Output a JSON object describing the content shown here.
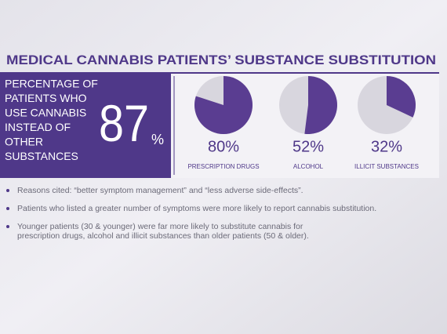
{
  "title": "MEDICAL CANNABIS PATIENTS’ SUBSTANCE SUBSTITUTION",
  "highlight": {
    "lines": [
      "PERCENTAGE OF",
      "PATIENTS WHO",
      "USE CANNABIS",
      "INSTEAD OF",
      "OTHER",
      "SUBSTANCES"
    ],
    "value": "87",
    "unit": "%"
  },
  "chart_data": [
    {
      "type": "pie",
      "categories": [
        "PRESCRIPTION DRUGS"
      ],
      "values": [
        80
      ],
      "value_labels": [
        "80%"
      ],
      "color": "#5a3d91",
      "rest_color": "#d8d6de"
    },
    {
      "type": "pie",
      "categories": [
        "ALCOHOL"
      ],
      "values": [
        52
      ],
      "value_labels": [
        "52%"
      ],
      "color": "#5a3d91",
      "rest_color": "#d8d6de"
    },
    {
      "type": "pie",
      "categories": [
        "ILLICIT SUBSTANCES"
      ],
      "values": [
        32
      ],
      "value_labels": [
        "32%"
      ],
      "color": "#5a3d91",
      "rest_color": "#d8d6de"
    }
  ],
  "bullets": [
    {
      "lines": [
        "Reasons cited: “better symptom management” and “less adverse side-effects”."
      ]
    },
    {
      "lines": [
        "Patients who listed a greater number of symptoms were more likely to report cannabis substitution."
      ]
    },
    {
      "lines": [
        "Younger patients (30 & younger) were far more likely to substitute cannabis for",
        "prescription drugs, alcohol and illicit substances than older patients (50 & older)."
      ]
    }
  ]
}
